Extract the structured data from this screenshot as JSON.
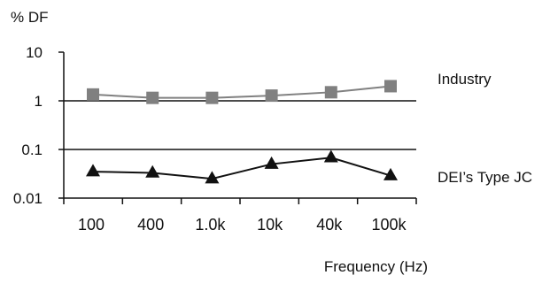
{
  "chart_data": {
    "type": "line",
    "title": "",
    "ylabel": "% DF",
    "xlabel": "Frequency (Hz)",
    "y_scale": "log",
    "ylim": [
      0.01,
      10
    ],
    "y_ticks": [
      "10",
      "1",
      "0.1",
      "0.01"
    ],
    "categories": [
      "100",
      "400",
      "1.0k",
      "10k",
      "40k",
      "100k"
    ],
    "grid": "horizontal lines at 1 and 0.1",
    "legend": "labels at right of each series",
    "series": [
      {
        "name": "Industry",
        "marker": "square",
        "color": "#808080",
        "values": [
          1.35,
          1.15,
          1.15,
          1.28,
          1.5,
          2.0
        ]
      },
      {
        "name": "DEI’s Type JC",
        "marker": "triangle",
        "color": "#111111",
        "values": [
          0.035,
          0.033,
          0.025,
          0.05,
          0.068,
          0.029
        ]
      }
    ]
  }
}
